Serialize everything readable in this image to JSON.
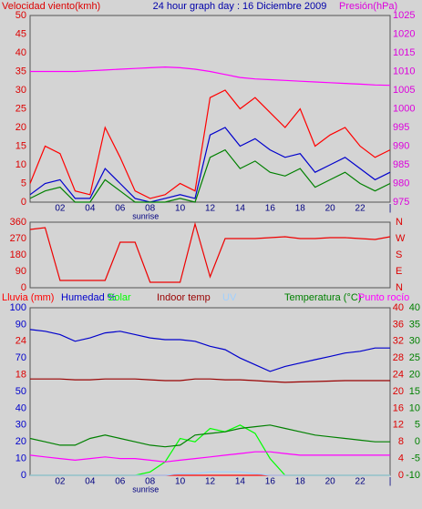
{
  "header": {
    "title": "24 hour graph day : 16 Diciembre 2009"
  },
  "chart_data": [
    {
      "type": "line",
      "y_label": "Velocidad viento(kmh)",
      "y2_label": "Presión(hPa)",
      "annotation": "sunrise",
      "x": [
        0,
        1,
        2,
        3,
        4,
        5,
        6,
        7,
        8,
        9,
        10,
        11,
        12,
        13,
        14,
        15,
        16,
        17,
        18,
        19,
        20,
        21,
        22,
        23,
        24
      ],
      "xlim": [
        0,
        24
      ],
      "xticks": [
        {
          "value": 2,
          "label": "02"
        },
        {
          "value": 4,
          "label": "04"
        },
        {
          "value": 6,
          "label": "06"
        },
        {
          "value": 8,
          "label": "08"
        },
        10,
        12,
        14,
        16,
        18,
        20,
        22,
        {
          "value": 24,
          "label": "|"
        }
      ],
      "ylim": [
        0,
        50
      ],
      "yticks": [
        0,
        5,
        10,
        15,
        20,
        25,
        30,
        35,
        40,
        45,
        50
      ],
      "ycolor": "#dd0000",
      "y2lim": [
        975,
        1025
      ],
      "y2ticks": [
        975,
        980,
        985,
        990,
        995,
        1000,
        1005,
        1010,
        1015,
        1020,
        1025
      ],
      "y2color": "#dd00dd",
      "series": [
        {
          "color": "#ff0000",
          "axis": "y",
          "values": [
            5,
            15,
            13,
            3,
            2,
            20,
            12,
            3,
            1,
            2,
            5,
            3,
            28,
            30,
            25,
            28,
            24,
            20,
            25,
            15,
            18,
            20,
            15,
            12,
            14
          ]
        },
        {
          "color": "#0000cc",
          "axis": "y",
          "values": [
            2,
            5,
            6,
            1,
            1,
            9,
            5,
            1,
            0,
            1,
            2,
            1,
            18,
            20,
            15,
            17,
            14,
            12,
            13,
            8,
            10,
            12,
            9,
            6,
            8
          ]
        },
        {
          "color": "#008000",
          "axis": "y",
          "values": [
            1,
            3,
            4,
            0,
            0,
            6,
            3,
            0,
            0,
            0,
            1,
            0,
            12,
            14,
            9,
            11,
            8,
            7,
            9,
            4,
            6,
            8,
            5,
            3,
            5
          ]
        },
        {
          "color": "#ff00ff",
          "axis": "y2",
          "values": [
            1010,
            1010,
            1010,
            1010,
            1010.2,
            1010.4,
            1010.6,
            1010.8,
            1011,
            1011.2,
            1011,
            1010.6,
            1010,
            1009.2,
            1008.4,
            1008,
            1007.8,
            1007.6,
            1007.4,
            1007.2,
            1007,
            1006.8,
            1006.6,
            1006.4,
            1006.3
          ]
        }
      ]
    },
    {
      "type": "line",
      "x": [
        0,
        1,
        2,
        3,
        4,
        5,
        6,
        7,
        8,
        9,
        10,
        11,
        12,
        13,
        14,
        15,
        16,
        17,
        18,
        19,
        20,
        21,
        22,
        23,
        24
      ],
      "xlim": [
        0,
        24
      ],
      "ylim": [
        0,
        360
      ],
      "yticks": [
        0,
        90,
        180,
        270,
        360
      ],
      "ycolor": "#dd0000",
      "y2lim": [
        0,
        360
      ],
      "y2ticks": [
        {
          "value": 360,
          "label": "N"
        },
        {
          "value": 270,
          "label": "W"
        },
        {
          "value": 180,
          "label": "S"
        },
        {
          "value": 90,
          "label": "E"
        },
        {
          "value": 0,
          "label": "N"
        }
      ],
      "y2color": "#dd0000",
      "series": [
        {
          "color": "#ee0000",
          "axis": "y",
          "values": [
            320,
            330,
            40,
            40,
            40,
            40,
            250,
            250,
            30,
            30,
            30,
            350,
            60,
            270,
            270,
            270,
            275,
            280,
            270,
            270,
            275,
            275,
            270,
            265,
            280
          ]
        }
      ]
    },
    {
      "type": "line",
      "annotation": "sunrise",
      "x": [
        0,
        1,
        2,
        3,
        4,
        5,
        6,
        7,
        8,
        9,
        10,
        11,
        12,
        13,
        14,
        15,
        16,
        17,
        18,
        19,
        20,
        21,
        22,
        23,
        24
      ],
      "xlim": [
        0,
        24
      ],
      "xticks": [
        {
          "value": 2,
          "label": "02"
        },
        {
          "value": 4,
          "label": "04"
        },
        {
          "value": 6,
          "label": "06"
        },
        {
          "value": 8,
          "label": "08"
        },
        10,
        12,
        14,
        16,
        18,
        20,
        22,
        {
          "value": 24,
          "label": "|"
        }
      ],
      "ylim": [
        0,
        100
      ],
      "yticks": [
        0,
        10,
        20,
        30,
        40,
        50,
        70,
        90,
        100
      ],
      "ycolor": "#0000cc",
      "y2lim": [
        -10,
        40
      ],
      "y2ticks": [
        -10,
        -5,
        0,
        5,
        10,
        15,
        20,
        25,
        30,
        35,
        40
      ],
      "y2color": "#008000",
      "y3lim": [
        0,
        40
      ],
      "y3ticks": [
        0,
        4,
        8,
        12,
        16,
        20,
        24,
        28,
        32,
        36,
        40
      ],
      "y3color": "#dd0000",
      "y4lim": [
        0,
        30
      ],
      "y4ticks": [
        18,
        24
      ],
      "y4color": "#dd0000",
      "series": [
        {
          "name": "Lluvia (mm)",
          "color": "#ff0000",
          "axis": "y4",
          "values": [
            0,
            0,
            0,
            0,
            0,
            0,
            0,
            0,
            0,
            0,
            0,
            0,
            0,
            0,
            0,
            0,
            0,
            0,
            0,
            0,
            0,
            0,
            0,
            0,
            0
          ]
        },
        {
          "name": "Humedad %",
          "color": "#0000cc",
          "axis": "y",
          "values": [
            87,
            86,
            84,
            80,
            82,
            85,
            86,
            84,
            82,
            81,
            81,
            80,
            77,
            75,
            70,
            66,
            62,
            65,
            67,
            69,
            71,
            73,
            74,
            76,
            76
          ]
        },
        {
          "name": "Solar",
          "color": "#00ff00",
          "axis": "y",
          "values": [
            0,
            0,
            0,
            0,
            0,
            0,
            0,
            0,
            2,
            8,
            22,
            20,
            28,
            26,
            30,
            25,
            10,
            0,
            0,
            0,
            0,
            0,
            0,
            0,
            0
          ]
        },
        {
          "name": "Indoor temp",
          "color": "#990000",
          "axis": "y3",
          "values": [
            23,
            23,
            23,
            22.8,
            22.8,
            23,
            23,
            23,
            22.8,
            22.6,
            22.6,
            23,
            23,
            22.8,
            22.8,
            22.6,
            22.4,
            22.2,
            22.3,
            22.4,
            22.5,
            22.6,
            22.6,
            22.6,
            22.6
          ]
        },
        {
          "name": "UV",
          "color": "#a0d0ff",
          "axis": "y",
          "values": [
            0,
            0,
            0,
            0,
            0,
            0,
            0,
            0,
            0,
            0,
            1,
            1,
            2,
            2,
            2,
            1,
            0,
            0,
            0,
            0,
            0,
            0,
            0,
            0,
            0
          ]
        },
        {
          "name": "Temperatura (°C)",
          "color": "#008000",
          "axis": "y2",
          "values": [
            1,
            0,
            -1,
            -1,
            1,
            2,
            1,
            0,
            -1,
            -1.5,
            -1,
            2,
            2.5,
            3,
            4,
            4.5,
            5,
            4,
            3,
            2,
            1.5,
            1,
            0.5,
            0,
            0
          ]
        },
        {
          "name": "Punto rocío",
          "color": "#ff00ff",
          "axis": "y2",
          "values": [
            -4,
            -4.5,
            -5,
            -5.5,
            -5,
            -4.5,
            -5,
            -5,
            -5.5,
            -6,
            -5.5,
            -5,
            -4.5,
            -4,
            -3.5,
            -3,
            -3,
            -3.5,
            -4,
            -4,
            -4,
            -4,
            -4,
            -4,
            -4
          ]
        }
      ]
    }
  ]
}
